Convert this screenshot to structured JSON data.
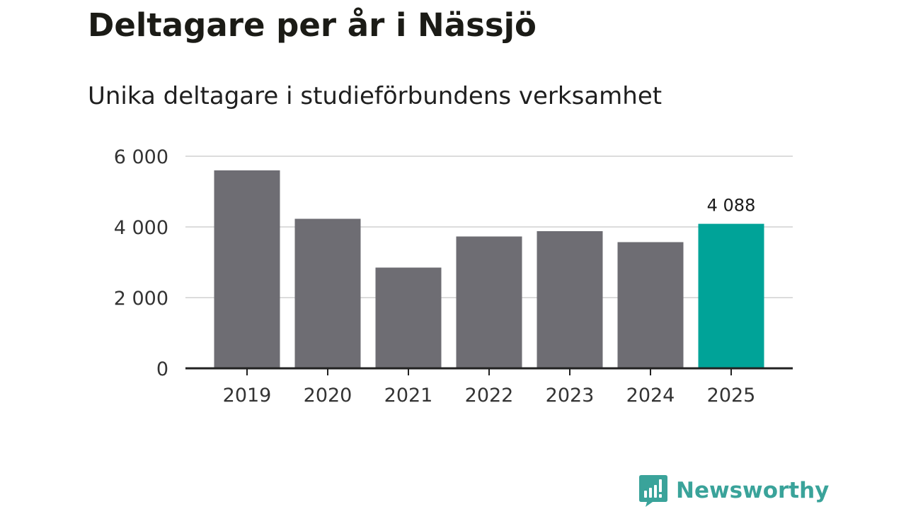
{
  "header": {
    "title": "Deltagare per år i Nässjö",
    "subtitle": "Unika deltagare i studieförbundens verksamhet"
  },
  "chart_data": {
    "type": "bar",
    "categories": [
      "2019",
      "2020",
      "2021",
      "2022",
      "2023",
      "2024",
      "2025"
    ],
    "values": [
      5600,
      4230,
      2850,
      3730,
      3880,
      3570,
      4088
    ],
    "highlight_index": 6,
    "data_labels": [
      {
        "index": 6,
        "text": "4 088"
      }
    ],
    "ylim": [
      0,
      6000
    ],
    "yticks": [
      0,
      2000,
      4000,
      6000
    ],
    "ytick_labels": [
      "0",
      "2 000",
      "4 000",
      "6 000"
    ],
    "grid": true,
    "title": "Deltagare per år i Nässjö",
    "subtitle": "Unika deltagare i studieförbundens verksamhet",
    "xlabel": "",
    "ylabel": "",
    "colors": {
      "bar": "#6e6d73",
      "highlight": "#00a398",
      "grid": "#dcdcdc",
      "axis": "#222222",
      "tick_text": "#333333",
      "label_text": "#1a1a1a"
    }
  },
  "branding": {
    "logo_text": "Newsworthy",
    "logo_icon": "speech-bubble-bar-chart-icon",
    "color": "#3aa39a"
  }
}
